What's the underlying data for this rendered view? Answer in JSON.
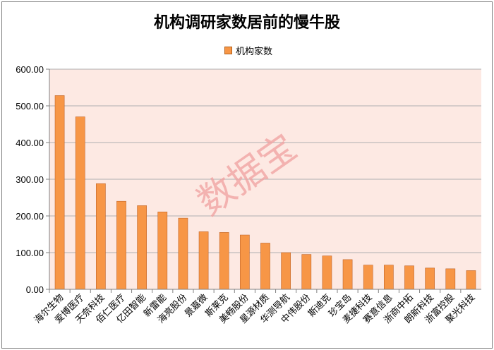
{
  "chart_data": {
    "type": "bar",
    "title": "机构调研家数居前的慢牛股",
    "legend": "机构家数",
    "legend_position": "top",
    "watermark": "数据宝",
    "ylim": [
      0,
      600
    ],
    "yticks": [
      "0.00",
      "100.00",
      "200.00",
      "300.00",
      "400.00",
      "500.00",
      "600.00"
    ],
    "grid": true,
    "bar_color": "#f79646",
    "plot_bg": "#fde9e3",
    "categories": [
      "海尔生物",
      "爱博医疗",
      "天奈科技",
      "佰仁医疗",
      "亿田智能",
      "新雷能",
      "海亮股份",
      "景嘉微",
      "斯莱克",
      "美畅股份",
      "星源材质",
      "华测导航",
      "中伟股份",
      "斯迪克",
      "珍宝岛",
      "麦捷科技",
      "赛意信息",
      "浙商中拓",
      "朗新科技",
      "浙富控股",
      "聚光科技"
    ],
    "series": [
      {
        "name": "机构家数",
        "values": [
          528,
          470,
          288,
          240,
          228,
          211,
          194,
          157,
          155,
          148,
          126,
          100,
          95,
          91,
          81,
          66,
          66,
          64,
          58,
          56,
          51
        ]
      }
    ]
  }
}
